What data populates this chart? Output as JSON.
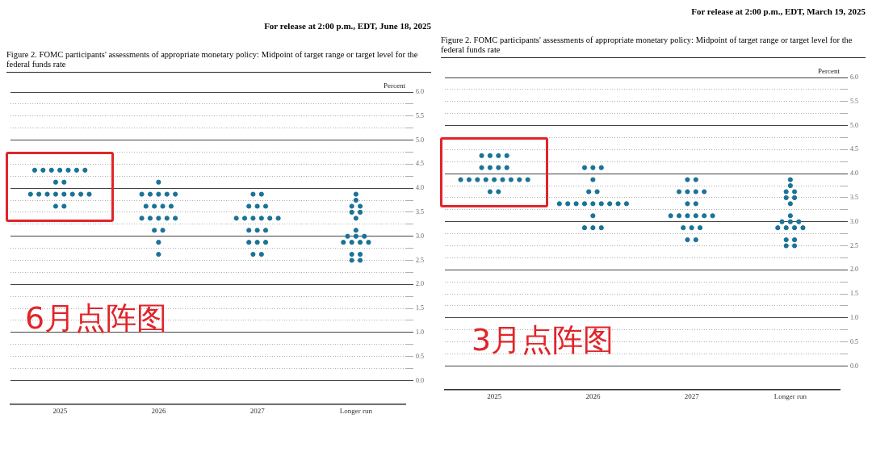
{
  "chart_data": [
    {
      "type": "scatter",
      "title": "Figure 2.  FOMC participants' assessments of appropriate monetary policy:  Midpoint of target range or target level for the federal funds rate",
      "ylabel": "Percent",
      "annotations": [
        "For release at 2:00 p.m., EDT, June 18, 2025",
        "6月点阵图"
      ],
      "categories": [
        "2025",
        "2026",
        "2027",
        "Longer run"
      ],
      "ylim": [
        -0.5,
        6
      ],
      "yticks": [
        {
          "value": 6,
          "label": "6.0"
        },
        {
          "value": 5.75,
          "label": null
        },
        5.5,
        {
          "value": 5.25,
          "label": null
        },
        {
          "value": 5,
          "label": "5.0"
        },
        {
          "value": 4.75,
          "label": null
        },
        4.5,
        {
          "value": 4.25,
          "label": null
        },
        {
          "value": 4,
          "label": "4.0"
        },
        {
          "value": 3.75,
          "label": null
        },
        3.5,
        {
          "value": 3.25,
          "label": null
        },
        {
          "value": 3,
          "label": "3.0"
        },
        {
          "value": 2.75,
          "label": null
        },
        2.5,
        {
          "value": 2.25,
          "label": null
        },
        {
          "value": 2,
          "label": "2.0"
        },
        {
          "value": 1.75,
          "label": null
        },
        1.5,
        {
          "value": 1.25,
          "label": null
        },
        {
          "value": 1,
          "label": "1.0"
        },
        {
          "value": 0.75,
          "label": null
        },
        0.5,
        {
          "value": 0.25,
          "label": null
        },
        {
          "value": 0,
          "label": "0.0"
        }
      ],
      "grid": "y",
      "legend": false,
      "marker": "circle",
      "series": [
        {
          "color": "#1b7396",
          "values": [
            4.375,
            4.125,
            3.875,
            3.875
          ]
        },
        {
          "color": "#1b7396",
          "values": [
            4.375,
            3.875,
            3.875,
            3.75
          ]
        },
        {
          "color": "#1b7396",
          "values": [
            4.375,
            3.875,
            3.625,
            3.625
          ]
        },
        {
          "color": "#1b7396",
          "values": [
            4.375,
            3.875,
            3.625,
            3.625
          ]
        },
        {
          "color": "#1b7396",
          "values": [
            4.375,
            3.875,
            3.625,
            3.5
          ]
        },
        {
          "color": "#1b7396",
          "values": [
            4.375,
            3.875,
            3.375,
            3.5
          ]
        },
        {
          "color": "#1b7396",
          "values": [
            4.375,
            3.625,
            3.375,
            3.375
          ]
        },
        {
          "color": "#1b7396",
          "values": [
            4.125,
            3.625,
            3.375,
            3.125
          ]
        },
        {
          "color": "#1b7396",
          "values": [
            4.125,
            3.625,
            3.375,
            3
          ]
        },
        {
          "color": "#1b7396",
          "values": [
            3.875,
            3.625,
            3.375,
            3
          ]
        },
        {
          "color": "#1b7396",
          "values": [
            3.875,
            3.375,
            3.375,
            3
          ]
        },
        {
          "color": "#1b7396",
          "values": [
            3.875,
            3.375,
            3.125,
            2.875
          ]
        },
        {
          "color": "#1b7396",
          "values": [
            3.875,
            3.375,
            3.125,
            2.875
          ]
        },
        {
          "color": "#1b7396",
          "values": [
            3.875,
            3.375,
            3.125,
            2.875
          ]
        },
        {
          "color": "#1b7396",
          "values": [
            3.875,
            3.375,
            2.875,
            2.875
          ]
        },
        {
          "color": "#1b7396",
          "values": [
            3.875,
            3.125,
            2.875,
            2.625
          ]
        },
        {
          "color": "#1b7396",
          "values": [
            3.875,
            3.125,
            2.875,
            2.625
          ]
        },
        {
          "color": "#1b7396",
          "values": [
            3.625,
            2.875,
            2.625,
            2.5
          ]
        },
        {
          "color": "#1b7396",
          "values": [
            3.625,
            2.625,
            2.625,
            2.5
          ]
        }
      ]
    },
    {
      "type": "scatter",
      "title": "Figure 2.  FOMC participants' assessments of appropriate monetary policy:  Midpoint of target range or target level for the federal funds rate",
      "ylabel": "Percent",
      "annotations": [
        "For release at 2:00 p.m., EDT, March 19, 2025",
        "3月点阵图"
      ],
      "categories": [
        "2025",
        "2026",
        "2027",
        "Longer run"
      ],
      "ylim": [
        -0.5,
        6
      ],
      "yticks": [
        {
          "value": 6,
          "label": "6.0"
        },
        {
          "value": 5.75,
          "label": null
        },
        5.5,
        {
          "value": 5.25,
          "label": null
        },
        {
          "value": 5,
          "label": "5.0"
        },
        {
          "value": 4.75,
          "label": null
        },
        4.5,
        {
          "value": 4.25,
          "label": null
        },
        {
          "value": 4,
          "label": "4.0"
        },
        {
          "value": 3.75,
          "label": null
        },
        3.5,
        {
          "value": 3.25,
          "label": null
        },
        {
          "value": 3,
          "label": "3.0"
        },
        {
          "value": 2.75,
          "label": null
        },
        2.5,
        {
          "value": 2.25,
          "label": null
        },
        {
          "value": 2,
          "label": "2.0"
        },
        {
          "value": 1.75,
          "label": null
        },
        1.5,
        {
          "value": 1.25,
          "label": null
        },
        {
          "value": 1,
          "label": "1.0"
        },
        {
          "value": 0.75,
          "label": null
        },
        0.5,
        {
          "value": 0.25,
          "label": null
        },
        {
          "value": 0,
          "label": "0.0"
        }
      ],
      "grid": "y",
      "legend": false,
      "marker": "circle",
      "series": [
        {
          "color": "#1b7396",
          "values": [
            4.375,
            4.125,
            3.875,
            3.875
          ]
        },
        {
          "color": "#1b7396",
          "values": [
            4.375,
            4.125,
            3.875,
            3.75
          ]
        },
        {
          "color": "#1b7396",
          "values": [
            4.375,
            4.125,
            3.625,
            3.625
          ]
        },
        {
          "color": "#1b7396",
          "values": [
            4.375,
            3.875,
            3.625,
            3.625
          ]
        },
        {
          "color": "#1b7396",
          "values": [
            4.125,
            3.625,
            3.625,
            3.5
          ]
        },
        {
          "color": "#1b7396",
          "values": [
            4.125,
            3.625,
            3.625,
            3.5
          ]
        },
        {
          "color": "#1b7396",
          "values": [
            4.125,
            3.375,
            3.375,
            3.375
          ]
        },
        {
          "color": "#1b7396",
          "values": [
            4.125,
            3.375,
            3.375,
            3.125
          ]
        },
        {
          "color": "#1b7396",
          "values": [
            3.875,
            3.375,
            3.125,
            3
          ]
        },
        {
          "color": "#1b7396",
          "values": [
            3.875,
            3.375,
            3.125,
            3
          ]
        },
        {
          "color": "#1b7396",
          "values": [
            3.875,
            3.375,
            3.125,
            3
          ]
        },
        {
          "color": "#1b7396",
          "values": [
            3.875,
            3.375,
            3.125,
            2.875
          ]
        },
        {
          "color": "#1b7396",
          "values": [
            3.875,
            3.375,
            3.125,
            2.875
          ]
        },
        {
          "color": "#1b7396",
          "values": [
            3.875,
            3.375,
            3.125,
            2.875
          ]
        },
        {
          "color": "#1b7396",
          "values": [
            3.875,
            3.375,
            2.875,
            2.875
          ]
        },
        {
          "color": "#1b7396",
          "values": [
            3.875,
            3.125,
            2.875,
            2.625
          ]
        },
        {
          "color": "#1b7396",
          "values": [
            3.875,
            2.875,
            2.875,
            2.625
          ]
        },
        {
          "color": "#1b7396",
          "values": [
            3.625,
            2.875,
            2.625,
            2.5
          ]
        },
        {
          "color": "#1b7396",
          "values": [
            3.625,
            2.875,
            2.625,
            2.5
          ]
        }
      ]
    }
  ]
}
